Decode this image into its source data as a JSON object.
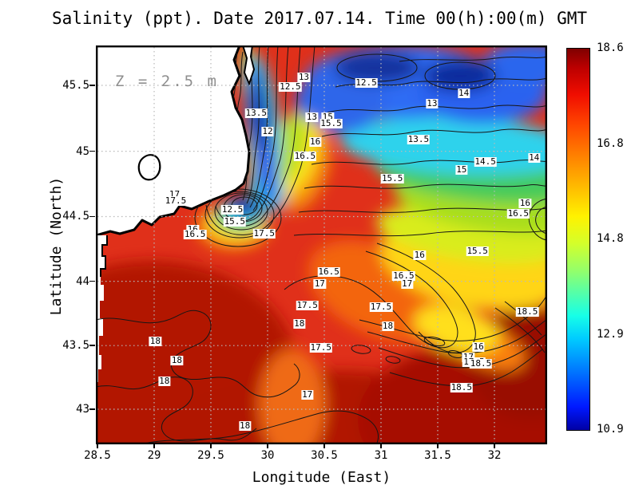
{
  "title": "Salinity (ppt). Date 2017.07.14. Time 00(h):00(m) GMT",
  "annotation": "Z = 2.5 m",
  "chart_data": {
    "type": "filled-contour-map",
    "title": "Salinity (ppt). Date 2017.07.14. Time 00(h):00(m) GMT",
    "subtitle": "Z = 2.5 m",
    "xlabel": "Longitude (East)",
    "ylabel": "Latitude (North)",
    "projection": "mercator",
    "grid": true,
    "x_range": [
      28.5,
      32.46
    ],
    "y_range": [
      42.74,
      45.79
    ],
    "x_ticks": [
      "28.5",
      "29",
      "29.5",
      "30",
      "30.5",
      "31",
      "31.5",
      "32"
    ],
    "y_ticks": [
      "45.5",
      "45",
      "44.5",
      "44",
      "43.5",
      "43"
    ],
    "contour_interval": 0.5,
    "colorbar": {
      "units": "ppt",
      "colormap": "jet",
      "min": 10.9,
      "max": 18.6,
      "ticks": [
        "18.6",
        "16.8",
        "14.8",
        "12.9",
        "10.9"
      ]
    },
    "contour_labels": [
      {
        "v": "13",
        "lon": 30.32,
        "lat": 45.56
      },
      {
        "v": "12.5",
        "lon": 30.2,
        "lat": 45.49
      },
      {
        "v": "12.5",
        "lon": 30.87,
        "lat": 45.52
      },
      {
        "v": "13.5",
        "lon": 29.9,
        "lat": 45.29
      },
      {
        "v": "13",
        "lon": 30.39,
        "lat": 45.26
      },
      {
        "v": "15",
        "lon": 30.53,
        "lat": 45.26
      },
      {
        "v": "15.5",
        "lon": 30.56,
        "lat": 45.21
      },
      {
        "v": "14",
        "lon": 31.73,
        "lat": 45.44
      },
      {
        "v": "13",
        "lon": 31.45,
        "lat": 45.36
      },
      {
        "v": "12",
        "lon": 30.0,
        "lat": 45.15
      },
      {
        "v": "16",
        "lon": 30.42,
        "lat": 45.07
      },
      {
        "v": "16.5",
        "lon": 30.33,
        "lat": 44.96
      },
      {
        "v": "13.5",
        "lon": 31.33,
        "lat": 45.09
      },
      {
        "v": "14.5",
        "lon": 31.92,
        "lat": 44.92
      },
      {
        "v": "15",
        "lon": 31.71,
        "lat": 44.86
      },
      {
        "v": "14",
        "lon": 32.35,
        "lat": 44.95
      },
      {
        "v": "15.5",
        "lon": 31.1,
        "lat": 44.79
      },
      {
        "v": "17",
        "lon": 29.18,
        "lat": 44.67
      },
      {
        "v": "17.5",
        "lon": 29.19,
        "lat": 44.62
      },
      {
        "v": "12.5",
        "lon": 29.69,
        "lat": 44.55
      },
      {
        "v": "15.5",
        "lon": 29.71,
        "lat": 44.46
      },
      {
        "v": "16",
        "lon": 29.34,
        "lat": 44.4
      },
      {
        "v": "16.5",
        "lon": 29.36,
        "lat": 44.36
      },
      {
        "v": "17.5",
        "lon": 29.97,
        "lat": 44.37
      },
      {
        "v": "16",
        "lon": 32.27,
        "lat": 44.6
      },
      {
        "v": "16.5",
        "lon": 32.21,
        "lat": 44.52
      },
      {
        "v": "15.5",
        "lon": 31.85,
        "lat": 44.23
      },
      {
        "v": "16",
        "lon": 31.34,
        "lat": 44.2
      },
      {
        "v": "16.5",
        "lon": 30.54,
        "lat": 44.07
      },
      {
        "v": "17",
        "lon": 30.46,
        "lat": 43.98
      },
      {
        "v": "16.5",
        "lon": 31.2,
        "lat": 44.04
      },
      {
        "v": "17",
        "lon": 31.23,
        "lat": 43.98
      },
      {
        "v": "17.5",
        "lon": 30.35,
        "lat": 43.81
      },
      {
        "v": "18",
        "lon": 30.28,
        "lat": 43.67
      },
      {
        "v": "17.5",
        "lon": 31.0,
        "lat": 43.8
      },
      {
        "v": "18",
        "lon": 31.06,
        "lat": 43.65
      },
      {
        "v": "17.5",
        "lon": 30.47,
        "lat": 43.48
      },
      {
        "v": "17",
        "lon": 30.35,
        "lat": 43.11
      },
      {
        "v": "18",
        "lon": 29.01,
        "lat": 43.53
      },
      {
        "v": "18",
        "lon": 29.2,
        "lat": 43.38
      },
      {
        "v": "18",
        "lon": 29.09,
        "lat": 43.22
      },
      {
        "v": "18",
        "lon": 29.8,
        "lat": 42.87
      },
      {
        "v": "18.5",
        "lon": 32.29,
        "lat": 43.76
      },
      {
        "v": "16",
        "lon": 31.86,
        "lat": 43.49
      },
      {
        "v": "17",
        "lon": 31.77,
        "lat": 43.41
      },
      {
        "v": "17.5",
        "lon": 31.82,
        "lat": 43.37
      },
      {
        "v": "18.5",
        "lon": 31.88,
        "lat": 43.36
      },
      {
        "v": "18.5",
        "lon": 31.71,
        "lat": 43.17
      }
    ]
  }
}
